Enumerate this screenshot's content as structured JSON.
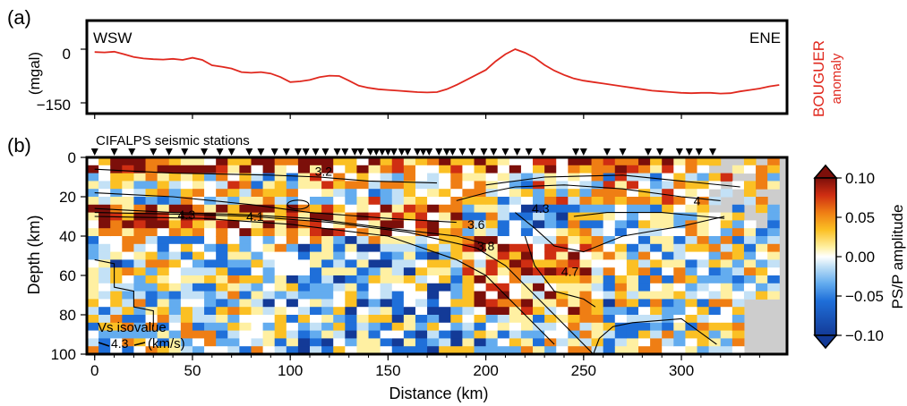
{
  "chart_data": [
    {
      "panel_label": "(a)",
      "type": "line",
      "ylabel": "(mgal)",
      "right_label_line1": "BOUGUER",
      "right_label_line2": "anomaly",
      "left_annotation": "WSW",
      "right_annotation": "ENE",
      "xlim": [
        -4,
        354
      ],
      "ylim": [
        -180,
        80
      ],
      "yticks": [
        0,
        -150
      ],
      "ytick_labels": [
        "0",
        "−150"
      ],
      "series": [
        {
          "color": "#e0281e",
          "x": [
            0,
            5,
            10,
            15,
            20,
            25,
            30,
            35,
            40,
            45,
            50,
            55,
            60,
            65,
            70,
            75,
            80,
            85,
            90,
            95,
            100,
            105,
            110,
            115,
            120,
            125,
            130,
            135,
            140,
            145,
            150,
            155,
            160,
            165,
            170,
            175,
            180,
            185,
            190,
            195,
            200,
            205,
            210,
            215,
            220,
            225,
            230,
            235,
            240,
            245,
            250,
            255,
            260,
            265,
            270,
            275,
            280,
            285,
            290,
            295,
            300,
            305,
            310,
            315,
            320,
            325,
            330,
            335,
            340,
            345,
            350
          ],
          "y": [
            -8,
            -9,
            -7,
            -14,
            -22,
            -26,
            -28,
            -29,
            -27,
            -30,
            -24,
            -30,
            -45,
            -49,
            -54,
            -64,
            -66,
            -64,
            -68,
            -78,
            -92,
            -90,
            -86,
            -78,
            -74,
            -75,
            -88,
            -102,
            -108,
            -112,
            -114,
            -116,
            -118,
            -120,
            -121,
            -120,
            -112,
            -100,
            -86,
            -72,
            -58,
            -34,
            -14,
            0,
            -10,
            -24,
            -44,
            -60,
            -72,
            -82,
            -88,
            -92,
            -96,
            -100,
            -104,
            -108,
            -112,
            -116,
            -118,
            -120,
            -122,
            -123,
            -122,
            -122,
            -124,
            -123,
            -118,
            -114,
            -110,
            -104,
            -100
          ]
        }
      ]
    },
    {
      "panel_label": "(b)",
      "type": "heatmap",
      "title": "CIFALPS seismic stations",
      "xlabel": "Distance (km)",
      "ylabel": "Depth (km)",
      "xlim": [
        -4,
        354
      ],
      "ylim": [
        100,
        0
      ],
      "xticks": [
        0,
        50,
        100,
        150,
        200,
        250,
        300
      ],
      "yticks": [
        0,
        20,
        40,
        60,
        80,
        100
      ],
      "colorbar": {
        "label": "PS/P amplitude",
        "range": [
          -0.1,
          0.1
        ],
        "ticks": [
          0.1,
          0.05,
          0.0,
          -0.05,
          -0.1
        ],
        "tick_labels": [
          "0.10",
          "0.05",
          "0.00",
          "−0.05",
          "−0.10"
        ],
        "colors": [
          "#133a97",
          "#1f6fd9",
          "#63acef",
          "#c3e1f6",
          "#ffffff",
          "#fff0a2",
          "#fbc024",
          "#ef7e14",
          "#cf2e12",
          "#7c0f0a"
        ],
        "no_data_color": "#cdcdcd"
      },
      "stations_km": [
        0,
        10,
        19,
        30,
        38,
        46,
        56,
        64,
        70,
        79,
        85,
        92,
        98,
        104,
        108,
        113,
        118,
        124,
        128,
        133,
        136,
        141,
        144,
        147,
        150,
        153,
        157,
        160,
        165,
        168,
        171,
        176,
        180,
        183,
        188,
        193,
        199,
        204,
        210,
        216,
        222,
        229,
        246,
        250,
        262,
        270,
        283,
        289,
        299,
        304,
        309,
        316
      ],
      "vs_isovalue_legend": {
        "title": "Vs isovalue",
        "value": "4.3",
        "unit": "(km/s)"
      },
      "vs_contour_labels": [
        {
          "text": "3.2",
          "x": 117,
          "y": 7
        },
        {
          "text": "4.3",
          "x": 47,
          "y": 29
        },
        {
          "text": "4.1",
          "x": 82,
          "y": 30
        },
        {
          "text": "3.6",
          "x": 195,
          "y": 34
        },
        {
          "text": "3.8",
          "x": 200,
          "y": 45
        },
        {
          "text": "4.3",
          "x": 228,
          "y": 26
        },
        {
          "text": "4.7",
          "x": 243,
          "y": 58
        },
        {
          "text": "4",
          "x": 308,
          "y": 22
        }
      ]
    }
  ]
}
